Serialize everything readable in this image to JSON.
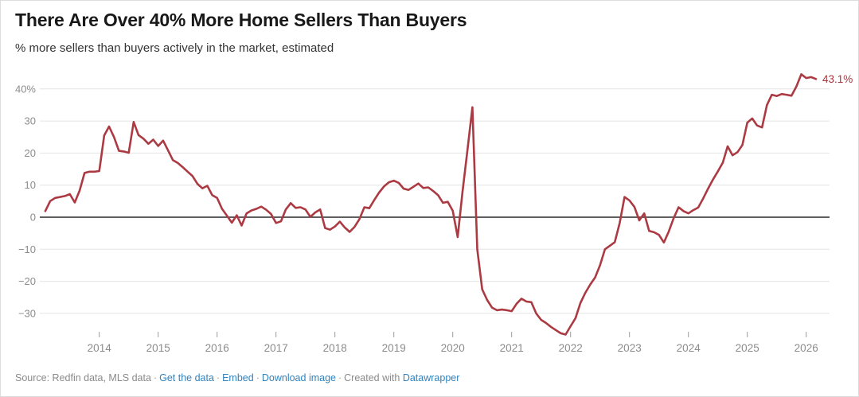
{
  "header": {
    "title": "There Are Over 40% More Home Sellers Than Buyers",
    "subtitle": "% more sellers than buyers actively in the market, estimated"
  },
  "footer": {
    "source": "Source: Redfin data, MLS data",
    "separator": "·",
    "links": [
      "Get the data",
      "Embed",
      "Download image"
    ],
    "created_with": "Created with",
    "tool_link": "Datawrapper",
    "link_color": "#3182bd",
    "text_color": "#8a8a8a"
  },
  "chart_data": {
    "type": "line",
    "title": "There Are Over 40% More Home Sellers Than Buyers",
    "subtitle": "% more sellers than buyers actively in the market, estimated",
    "unit": "%",
    "grid": "horizontal",
    "legend_position": "none",
    "xlim": [
      2013.0,
      2026.45
    ],
    "ylim": [
      -40,
      47
    ],
    "x_ticks": [
      2014,
      2015,
      2016,
      2017,
      2018,
      2019,
      2020,
      2021,
      2022,
      2023,
      2024,
      2025,
      2026
    ],
    "y_ticks": [
      {
        "value": 40,
        "label": "40%"
      },
      {
        "value": 30,
        "label": "30"
      },
      {
        "value": 20,
        "label": "20"
      },
      {
        "value": 10,
        "label": "10"
      },
      {
        "value": 0,
        "label": "0"
      },
      {
        "value": -10,
        "label": "−10"
      },
      {
        "value": -20,
        "label": "−20"
      },
      {
        "value": -30,
        "label": "−30"
      }
    ],
    "end_label": "43.1%",
    "colors": {
      "line": "#ab3a43",
      "end_label": "#a8363f",
      "gridline": "#e4e4e4",
      "zero_line": "#2b2b2b",
      "axis_text": "#8c8c8c",
      "tick": "#9d9d9d"
    },
    "series": [
      {
        "name": "% more sellers than buyers",
        "color": "#ab3a43",
        "start": "2013-02",
        "frequency": "monthly",
        "values": [
          1.9,
          5.0,
          6.0,
          6.3,
          6.6,
          7.2,
          4.6,
          8.3,
          13.8,
          14.2,
          14.2,
          14.4,
          25.5,
          28.3,
          25.0,
          20.7,
          20.5,
          20.1,
          29.7,
          25.6,
          24.5,
          22.9,
          24.2,
          22.2,
          23.9,
          20.9,
          17.8,
          16.9,
          15.6,
          14.2,
          12.8,
          10.4,
          9.0,
          9.8,
          6.9,
          6.0,
          2.6,
          0.5,
          -1.7,
          0.6,
          -2.6,
          1.2,
          2.1,
          2.6,
          3.3,
          2.3,
          1.0,
          -1.8,
          -1.3,
          2.4,
          4.4,
          2.9,
          3.1,
          2.4,
          0.1,
          1.5,
          2.4,
          -3.4,
          -3.9,
          -2.9,
          -1.4,
          -3.2,
          -4.6,
          -3.0,
          -0.6,
          3.1,
          2.8,
          5.3,
          7.7,
          9.6,
          10.9,
          11.4,
          10.7,
          8.9,
          8.5,
          9.5,
          10.5,
          9.1,
          9.3,
          8.2,
          6.9,
          4.5,
          4.8,
          2.0,
          -6.2,
          8.0,
          21.0,
          34.3,
          -10.0,
          -22.5,
          -25.8,
          -28.2,
          -29.0,
          -28.8,
          -29.0,
          -29.3,
          -27.0,
          -25.4,
          -26.3,
          -26.5,
          -30.0,
          -32.0,
          -33.0,
          -34.2,
          -35.2,
          -36.2,
          -36.6,
          -34.0,
          -31.5,
          -26.8,
          -23.6,
          -21.0,
          -18.8,
          -15.0,
          -10.0,
          -8.9,
          -7.8,
          -1.8,
          6.3,
          5.2,
          3.2,
          -1.0,
          1.2,
          -4.3,
          -4.7,
          -5.5,
          -7.9,
          -4.5,
          -0.3,
          3.1,
          1.9,
          1.2,
          2.2,
          3.0,
          5.8,
          8.9,
          11.7,
          14.3,
          17.0,
          22.1,
          19.3,
          20.3,
          22.5,
          29.5,
          30.8,
          28.6,
          28.0,
          35.0,
          38.2,
          37.8,
          38.4,
          38.2,
          37.9,
          40.8,
          44.6,
          43.4,
          43.7,
          43.1
        ]
      }
    ]
  }
}
